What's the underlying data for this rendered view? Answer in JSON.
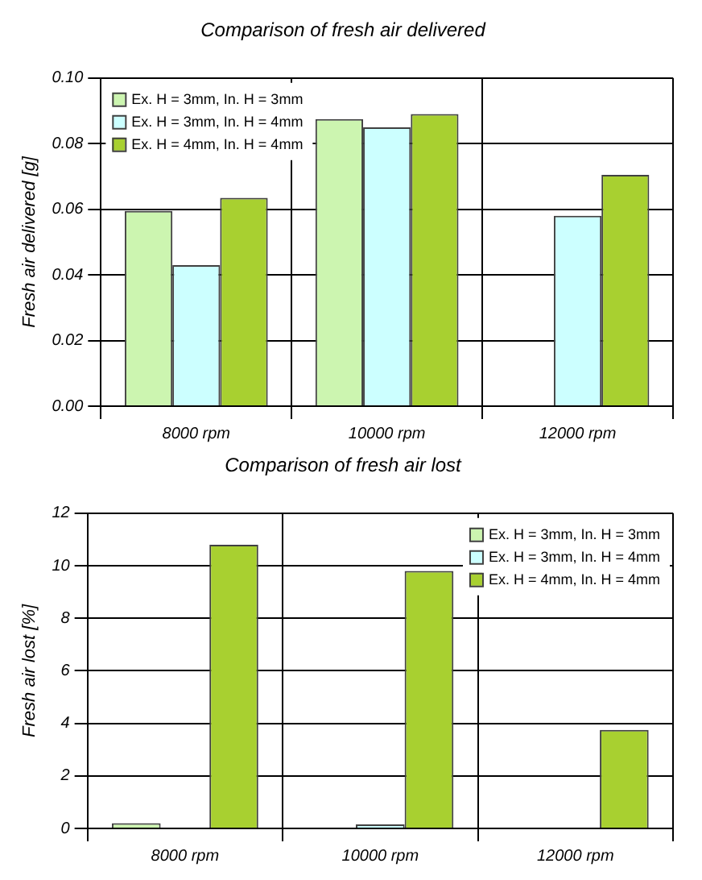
{
  "chart_data": [
    {
      "type": "bar",
      "title": "Comparison of fresh air delivered",
      "ylabel": "Fresh air delivered [g]",
      "categories": [
        "8000 rpm",
        "10000 rpm",
        "12000 rpm"
      ],
      "series": [
        {
          "name": "Ex. H = 3mm, In. H = 3mm",
          "color": "#ccf5b0",
          "values": [
            0.0595,
            0.0875,
            null
          ]
        },
        {
          "name": "Ex. H = 3mm, In. H = 4mm",
          "color": "#ccffff",
          "values": [
            0.043,
            0.085,
            0.058
          ]
        },
        {
          "name": "Ex. H = 4mm, In. H = 4mm",
          "color": "#a8d030",
          "values": [
            0.0635,
            0.089,
            0.0705
          ]
        }
      ],
      "ylim": [
        0,
        0.1
      ],
      "yticks": [
        {
          "value": 0,
          "label": "0.00"
        },
        {
          "value": 0.02,
          "label": "0.02"
        },
        {
          "value": 0.04,
          "label": "0.04"
        },
        {
          "value": 0.06,
          "label": "0.06"
        },
        {
          "value": 0.08,
          "label": "0.08"
        },
        {
          "value": 0.1,
          "label": "0.10"
        }
      ],
      "grid": true,
      "legend": "top left"
    },
    {
      "type": "bar",
      "title": "Comparison of fresh air lost",
      "ylabel": "Fresh air lost [%]",
      "categories": [
        "8000 rpm",
        "10000 rpm",
        "12000 rpm"
      ],
      "series": [
        {
          "name": "Ex. H = 3mm, In. H = 3mm",
          "color": "#ccf5b0",
          "values": [
            0.2,
            null,
            null
          ]
        },
        {
          "name": "Ex. H = 3mm, In. H = 4mm",
          "color": "#ccffff",
          "values": [
            null,
            0.15,
            null
          ]
        },
        {
          "name": "Ex. H = 4mm, In. H = 4mm",
          "color": "#a8d030",
          "values": [
            10.8,
            9.8,
            3.75
          ]
        }
      ],
      "ylim": [
        0,
        12
      ],
      "yticks": [
        0,
        2,
        4,
        6,
        8,
        10,
        12
      ],
      "grid": true,
      "legend": "top right"
    }
  ]
}
